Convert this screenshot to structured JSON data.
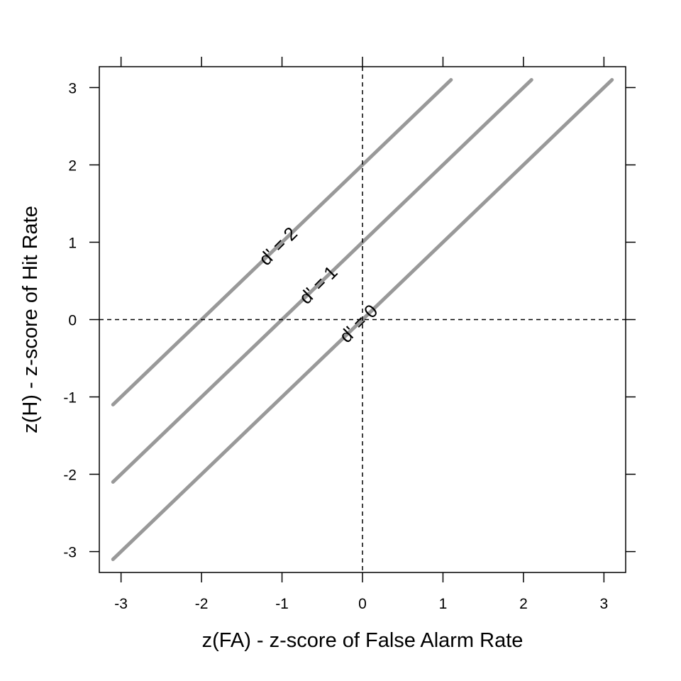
{
  "chart_data": {
    "type": "line",
    "xlabel": "z(FA) - z-score of False Alarm Rate",
    "ylabel": "z(H) - z-score of Hit Rate",
    "xlim": [
      -3.27,
      3.27
    ],
    "ylim": [
      -3.27,
      3.27
    ],
    "x_ticks": [
      "-3",
      "-2",
      "-1",
      "0",
      "1",
      "2",
      "3"
    ],
    "y_ticks": [
      "-3",
      "-2",
      "-1",
      "0",
      "1",
      "2",
      "3"
    ],
    "grid": false,
    "reference_lines": {
      "x": 0,
      "y": 0,
      "style": "dashed"
    },
    "series": [
      {
        "label": "d' = 2",
        "x": [
          -3.1,
          1.1
        ],
        "y": [
          -1.1,
          3.1
        ],
        "label_at": [
          -1.05,
          0.95
        ]
      },
      {
        "label": "d' = 1",
        "x": [
          -3.1,
          2.1
        ],
        "y": [
          -2.1,
          3.1
        ],
        "label_at": [
          -0.55,
          0.45
        ]
      },
      {
        "label": "d' = 0",
        "x": [
          -3.1,
          3.1
        ],
        "y": [
          -3.1,
          3.1
        ],
        "label_at": [
          -0.05,
          -0.05
        ]
      }
    ],
    "line_color": "#999999"
  }
}
